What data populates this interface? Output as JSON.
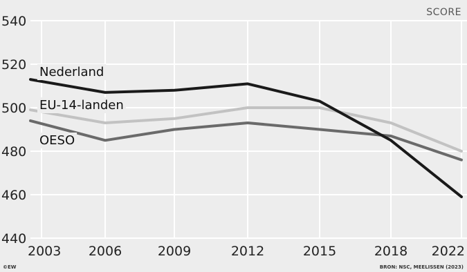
{
  "chart_data": {
    "type": "line",
    "unit_label": "SCORE",
    "x": [
      "2003",
      "2006",
      "2009",
      "2012",
      "2015",
      "2018",
      "2022"
    ],
    "ylim": [
      440,
      540
    ],
    "yticks": [
      440,
      460,
      480,
      500,
      520,
      540
    ],
    "grid": true,
    "series": [
      {
        "name": "Nederland",
        "values": [
          513,
          507,
          508,
          511,
          503,
          485,
          459
        ],
        "color": "#1a1a1a"
      },
      {
        "name": "EU-14-landen",
        "values": [
          499,
          493,
          495,
          500,
          500,
          493,
          480
        ],
        "color": "#c2c2c2"
      },
      {
        "name": "OESO",
        "values": [
          494,
          485,
          490,
          493,
          490,
          487,
          476
        ],
        "color": "#6a6a6a"
      }
    ],
    "credit": "©EW",
    "source": "BRON: NSC, MEELISSEN (2023)"
  }
}
